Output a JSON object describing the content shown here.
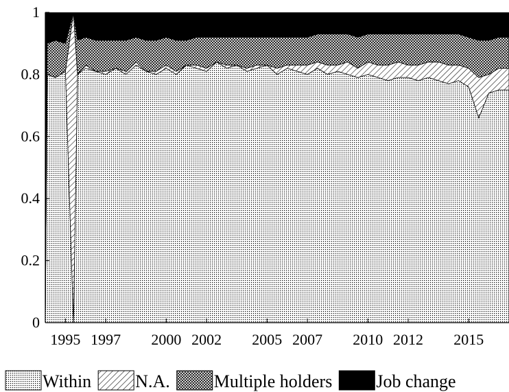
{
  "chart_data": {
    "type": "area",
    "stacked": true,
    "title": "",
    "xlabel": "",
    "ylabel": "",
    "ylim": [
      0,
      1
    ],
    "xlim": [
      1994.0,
      2017.0
    ],
    "yticks": [
      0,
      0.2,
      0.4,
      0.6,
      0.8,
      1
    ],
    "ytick_labels": [
      "0",
      "0.2",
      "0.4",
      "0.6",
      "0.8",
      "1"
    ],
    "xticks": [
      1995,
      1997,
      2000,
      2002,
      2005,
      2007,
      2010,
      2012,
      2015
    ],
    "xtick_labels": [
      "1995",
      "1997",
      "2000",
      "2002",
      "2005",
      "2007",
      "2010",
      "2012",
      "2015"
    ],
    "x": [
      1994.0,
      1994.1,
      1994.5,
      1995.0,
      1995.4,
      1995.6,
      1996.0,
      1996.5,
      1997.0,
      1997.5,
      1998.0,
      1998.5,
      1999.0,
      1999.5,
      2000.0,
      2000.5,
      2001.0,
      2001.5,
      2002.0,
      2002.5,
      2003.0,
      2003.5,
      2004.0,
      2004.5,
      2005.0,
      2005.5,
      2006.0,
      2006.5,
      2007.0,
      2007.5,
      2008.0,
      2008.5,
      2009.0,
      2009.5,
      2010.0,
      2010.5,
      2011.0,
      2011.5,
      2012.0,
      2012.5,
      2013.0,
      2013.5,
      2014.0,
      2014.5,
      2015.0,
      2015.5,
      2016.0,
      2016.5,
      2017.0
    ],
    "series": [
      {
        "name": "Within",
        "pattern": "dots",
        "values": [
          0.0,
          0.8,
          0.79,
          0.81,
          0.0,
          0.8,
          0.82,
          0.81,
          0.8,
          0.82,
          0.8,
          0.83,
          0.81,
          0.8,
          0.82,
          0.8,
          0.83,
          0.82,
          0.81,
          0.84,
          0.82,
          0.83,
          0.81,
          0.82,
          0.83,
          0.8,
          0.82,
          0.81,
          0.8,
          0.82,
          0.8,
          0.81,
          0.8,
          0.79,
          0.8,
          0.79,
          0.78,
          0.79,
          0.79,
          0.78,
          0.79,
          0.78,
          0.77,
          0.78,
          0.76,
          0.66,
          0.74,
          0.75,
          0.75
        ]
      },
      {
        "name": "N.A.",
        "pattern": "hatch",
        "values": [
          0.0,
          0.0,
          0.0,
          0.0,
          1.0,
          0.0,
          0.01,
          0.0,
          0.01,
          0.0,
          0.01,
          0.01,
          0.0,
          0.01,
          0.01,
          0.01,
          0.0,
          0.01,
          0.01,
          0.0,
          0.01,
          0.0,
          0.01,
          0.01,
          0.0,
          0.02,
          0.01,
          0.02,
          0.03,
          0.02,
          0.03,
          0.02,
          0.04,
          0.03,
          0.04,
          0.04,
          0.05,
          0.05,
          0.04,
          0.05,
          0.05,
          0.06,
          0.06,
          0.05,
          0.06,
          0.13,
          0.06,
          0.07,
          0.07
        ]
      },
      {
        "name": "Multiple holders",
        "pattern": "crosshatch",
        "values": [
          0.0,
          0.1,
          0.12,
          0.09,
          0.0,
          0.11,
          0.09,
          0.1,
          0.1,
          0.09,
          0.1,
          0.08,
          0.1,
          0.1,
          0.09,
          0.1,
          0.08,
          0.09,
          0.1,
          0.08,
          0.09,
          0.09,
          0.1,
          0.09,
          0.09,
          0.1,
          0.09,
          0.09,
          0.09,
          0.09,
          0.1,
          0.1,
          0.09,
          0.1,
          0.09,
          0.1,
          0.1,
          0.09,
          0.1,
          0.1,
          0.09,
          0.09,
          0.1,
          0.1,
          0.1,
          0.12,
          0.11,
          0.1,
          0.1
        ]
      },
      {
        "name": "Job change",
        "pattern": "solid",
        "values": [
          1.0,
          0.1,
          0.09,
          0.1,
          0.0,
          0.09,
          0.08,
          0.09,
          0.09,
          0.09,
          0.09,
          0.08,
          0.09,
          0.09,
          0.08,
          0.09,
          0.09,
          0.08,
          0.08,
          0.08,
          0.08,
          0.08,
          0.08,
          0.08,
          0.08,
          0.08,
          0.08,
          0.08,
          0.08,
          0.07,
          0.07,
          0.07,
          0.07,
          0.08,
          0.07,
          0.07,
          0.07,
          0.07,
          0.07,
          0.07,
          0.07,
          0.07,
          0.07,
          0.07,
          0.08,
          0.09,
          0.09,
          0.08,
          0.08
        ]
      }
    ],
    "legend": {
      "position": "bottom",
      "entries": [
        "Within",
        "N.A.",
        "Multiple holders",
        "Job change"
      ]
    },
    "grid": false
  }
}
